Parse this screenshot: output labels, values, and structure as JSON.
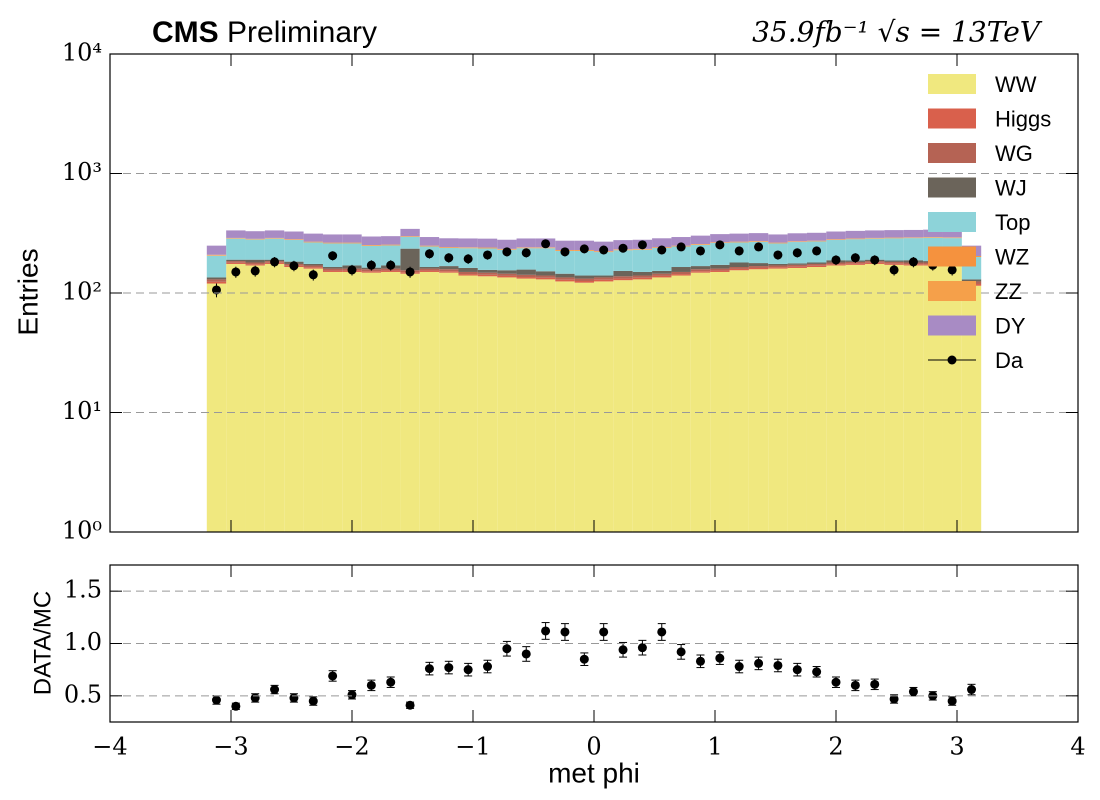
{
  "chart_data": [
    {
      "type": "stacked_histogram",
      "title": "CMS",
      "subtitle": "Preliminary",
      "lumi_label": "35.9fb⁻¹ √s = 13TeV",
      "ylabel": "Entries",
      "log_y": true,
      "grid": true,
      "legend": "upper right",
      "bins": [
        -3.2,
        -3.04,
        -2.88,
        -2.72,
        -2.56,
        -2.4,
        -2.24,
        -2.08,
        -1.92,
        -1.76,
        -1.6,
        -1.44,
        -1.28,
        -1.12,
        -0.96,
        -0.8,
        -0.64,
        -0.48,
        -0.32,
        -0.16,
        0,
        0.16,
        0.32,
        0.48,
        0.64,
        0.8,
        0.96,
        1.12,
        1.28,
        1.44,
        1.6,
        1.76,
        1.92,
        2.08,
        2.24,
        2.4,
        2.56,
        2.72,
        2.88,
        3.04,
        3.2
      ],
      "xlim": [
        -4,
        4
      ],
      "xticks": [
        {
          "value": -4,
          "label": "−4"
        },
        {
          "value": -3,
          "label": "−3"
        },
        {
          "value": -2,
          "label": "−2"
        },
        {
          "value": -1,
          "label": "−1"
        },
        0,
        1,
        2,
        3,
        4
      ],
      "ylim": [
        1,
        10000
      ],
      "yticks": [
        {
          "value": 1,
          "label": "10⁰"
        },
        {
          "value": 10,
          "label": "10¹"
        },
        {
          "value": 100,
          "label": "10²"
        },
        {
          "value": 1000,
          "label": "10³"
        },
        {
          "value": 10000,
          "label": "10⁴"
        }
      ],
      "series": [
        {
          "name": "WW",
          "color": "#f0e87f",
          "values": [
            120,
            175,
            170,
            175,
            165,
            160,
            150,
            150,
            148,
            150,
            145,
            150,
            148,
            140,
            138,
            135,
            132,
            130,
            125,
            122,
            125,
            128,
            130,
            135,
            140,
            148,
            150,
            155,
            158,
            160,
            162,
            165,
            170,
            172,
            175,
            172,
            170,
            170,
            168,
            115
          ]
        },
        {
          "name": "Higgs",
          "color": "#d9604c",
          "values": [
            4,
            4,
            4,
            4,
            4,
            4,
            4,
            4,
            4,
            4,
            4,
            4,
            4,
            4,
            4,
            4,
            4,
            4,
            4,
            4,
            4,
            4,
            4,
            4,
            4,
            4,
            4,
            4,
            4,
            4,
            4,
            4,
            4,
            4,
            4,
            4,
            4,
            4,
            4,
            4
          ]
        },
        {
          "name": "WG",
          "color": "#b56354",
          "values": [
            6,
            6,
            6,
            6,
            6,
            6,
            6,
            6,
            6,
            6,
            6,
            6,
            6,
            6,
            6,
            6,
            6,
            6,
            6,
            6,
            6,
            6,
            6,
            6,
            6,
            6,
            6,
            6,
            6,
            6,
            6,
            6,
            6,
            6,
            6,
            6,
            6,
            6,
            6,
            6
          ]
        },
        {
          "name": "WJ",
          "color": "#6b645a",
          "values": [
            5,
            5,
            10,
            5,
            8,
            5,
            5,
            10,
            5,
            10,
            80,
            5,
            10,
            12,
            8,
            10,
            15,
            12,
            10,
            8,
            5,
            15,
            10,
            8,
            15,
            10,
            12,
            15,
            10,
            5,
            5,
            5,
            8,
            5,
            5,
            5,
            8,
            5,
            5,
            5
          ]
        },
        {
          "name": "Top",
          "color": "#8dd3d9",
          "values": [
            70,
            95,
            90,
            95,
            95,
            90,
            95,
            90,
            85,
            80,
            60,
            80,
            70,
            75,
            80,
            75,
            80,
            85,
            80,
            85,
            80,
            75,
            80,
            85,
            80,
            85,
            90,
            85,
            90,
            85,
            90,
            90,
            90,
            95,
            95,
            100,
            100,
            105,
            105,
            70
          ]
        },
        {
          "name": "WZ",
          "color": "#f5923e",
          "values": [
            2,
            2,
            2,
            2,
            2,
            2,
            2,
            2,
            2,
            2,
            2,
            2,
            2,
            2,
            2,
            2,
            2,
            2,
            2,
            2,
            2,
            2,
            2,
            2,
            2,
            2,
            2,
            2,
            2,
            2,
            2,
            2,
            2,
            2,
            2,
            2,
            2,
            2,
            2,
            2
          ]
        },
        {
          "name": "ZZ",
          "color": "#f5a04a",
          "values": [
            2,
            2,
            2,
            2,
            2,
            2,
            2,
            2,
            2,
            2,
            2,
            2,
            2,
            2,
            2,
            2,
            2,
            2,
            2,
            2,
            2,
            2,
            2,
            2,
            2,
            2,
            2,
            2,
            2,
            2,
            2,
            2,
            2,
            2,
            2,
            2,
            2,
            2,
            2,
            2
          ]
        },
        {
          "name": "DY",
          "color": "#a88bc4",
          "values": [
            40,
            45,
            45,
            45,
            45,
            45,
            45,
            45,
            45,
            45,
            45,
            45,
            45,
            45,
            45,
            45,
            45,
            45,
            45,
            45,
            45,
            45,
            45,
            45,
            45,
            45,
            45,
            45,
            45,
            45,
            45,
            45,
            45,
            45,
            45,
            45,
            45,
            45,
            45,
            45
          ]
        }
      ],
      "data": {
        "name": "Da",
        "color": "#000000",
        "values": [
          106,
          150,
          153,
          182,
          169,
          142,
          205,
          156,
          171,
          171,
          150,
          213,
          197,
          193,
          208,
          221,
          217,
          258,
          221,
          234,
          229,
          237,
          253,
          229,
          243,
          225,
          253,
          225,
          243,
          208,
          217,
          225,
          189,
          197,
          189,
          156,
          182,
          171,
          156,
          null
        ],
        "errors": [
          14,
          16,
          16,
          18,
          17,
          15,
          18,
          16,
          17,
          17,
          16,
          19,
          18,
          18,
          18,
          19,
          19,
          20,
          19,
          19,
          19,
          19,
          20,
          19,
          19,
          19,
          20,
          19,
          19,
          18,
          19,
          19,
          18,
          18,
          18,
          16,
          18,
          17,
          16,
          null
        ]
      }
    },
    {
      "type": "errorbar",
      "xlabel": "met phi",
      "ylabel": "DATA/MC",
      "grid": true,
      "color": "#000000",
      "x": [
        -3.12,
        -2.96,
        -2.8,
        -2.64,
        -2.48,
        -2.32,
        -2.16,
        -2,
        -1.84,
        -1.68,
        -1.52,
        -1.36,
        -1.2,
        -1.04,
        -0.88,
        -0.72,
        -0.56,
        -0.4,
        -0.24,
        -0.08,
        0.08,
        0.24,
        0.4,
        0.56,
        0.72,
        0.88,
        1.04,
        1.2,
        1.36,
        1.52,
        1.68,
        1.84,
        2,
        2.16,
        2.32,
        2.48,
        2.64,
        2.8,
        2.96,
        3.12
      ],
      "values": [
        0.46,
        0.4,
        0.48,
        0.56,
        0.48,
        0.45,
        0.69,
        0.51,
        0.6,
        0.63,
        0.41,
        0.76,
        0.77,
        0.75,
        0.78,
        0.95,
        0.9,
        1.12,
        1.11,
        0.85,
        1.11,
        0.94,
        0.96,
        1.11,
        0.92,
        0.83,
        0.86,
        0.78,
        0.81,
        0.79,
        0.75,
        0.73,
        0.63,
        0.6,
        0.61,
        0.47,
        0.54,
        0.5,
        0.45,
        0.56
      ],
      "errors": [
        0.04,
        0.03,
        0.04,
        0.04,
        0.04,
        0.04,
        0.05,
        0.04,
        0.05,
        0.05,
        0.03,
        0.06,
        0.06,
        0.06,
        0.06,
        0.07,
        0.07,
        0.08,
        0.08,
        0.06,
        0.08,
        0.07,
        0.07,
        0.08,
        0.07,
        0.06,
        0.06,
        0.06,
        0.06,
        0.06,
        0.06,
        0.05,
        0.05,
        0.05,
        0.05,
        0.04,
        0.04,
        0.04,
        0.04,
        0.05
      ],
      "xlim": [
        -4,
        4
      ],
      "xticks": [
        {
          "value": -4,
          "label": "−4"
        },
        {
          "value": -3,
          "label": "−3"
        },
        {
          "value": -2,
          "label": "−2"
        },
        {
          "value": -1,
          "label": "−1"
        },
        0,
        1,
        2,
        3,
        4
      ],
      "ylim": [
        0.25,
        1.75
      ],
      "yticks": [
        0.5,
        {
          "value": 1,
          "label": "1.0"
        },
        1.5
      ]
    }
  ]
}
